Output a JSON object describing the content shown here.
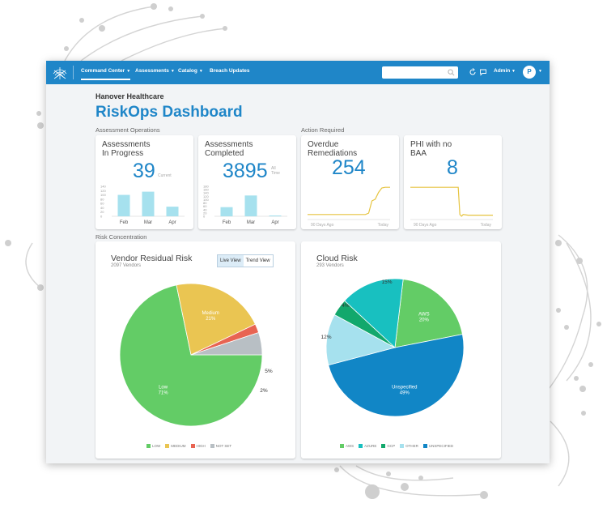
{
  "colors": {
    "brand": "#1f86c8",
    "bar": "#a6e1ee",
    "line": "#e6c440",
    "green": "#63cc66",
    "yellow": "#eac552",
    "red": "#e86452",
    "gray": "#b8bfc4",
    "teal": "#18c0c0",
    "dkgreen": "#12a86c",
    "lightblue": "#a6e1ee",
    "blue": "#1186c6"
  },
  "nav": {
    "items": [
      {
        "label": "Command Center",
        "active": true
      },
      {
        "label": "Assessments"
      },
      {
        "label": "Catalog"
      },
      {
        "label": "Breach Updates"
      }
    ],
    "search_placeholder": "",
    "admin_label": "Admin",
    "avatar_initial": "P",
    "icons": [
      "refresh-icon",
      "chat-icon"
    ]
  },
  "header": {
    "org": "Hanover Healthcare",
    "title": "RiskOps Dashboard"
  },
  "sections": {
    "assessment_operations": "Assessment Operations",
    "action_required": "Action Required",
    "risk_concentration": "Risk Concentration"
  },
  "cards": {
    "in_progress": {
      "title_line1": "Assessments",
      "title_line2": "In Progress",
      "value": "39",
      "value_note": "Current"
    },
    "completed": {
      "title_line1": "Assessments",
      "title_line2": "Completed",
      "value": "3895",
      "value_note": "All Time"
    },
    "overdue": {
      "title_line1": "Overdue",
      "title_line2": "Remediations",
      "value": "254",
      "x_start": "90 Days Ago",
      "x_end": "Today"
    },
    "phi": {
      "title_line1": "PHI with no",
      "title_line2": "BAA",
      "value": "8",
      "x_start": "90 Days Ago",
      "x_end": "Today"
    }
  },
  "vendor_risk": {
    "title": "Vendor Residual Risk",
    "subtitle": "2097 Vendors",
    "toggle": [
      "Live View",
      "Trend View"
    ],
    "toggle_selected": "Live View"
  },
  "cloud_risk": {
    "title": "Cloud Risk",
    "subtitle": "293 Vendors"
  },
  "chart_data": [
    {
      "type": "bar",
      "name": "in_progress",
      "categories": [
        "Feb",
        "Mar",
        "Apr"
      ],
      "values": [
        100,
        115,
        45
      ],
      "yticks": [
        "0",
        "20",
        "40",
        "60",
        "80",
        "100",
        "120",
        "140"
      ],
      "ylim": [
        0,
        140
      ]
    },
    {
      "type": "bar",
      "name": "completed",
      "categories": [
        "Feb",
        "Mar",
        "Apr"
      ],
      "values": [
        55,
        125,
        5
      ],
      "yticks": [
        "0",
        "20",
        "40",
        "60",
        "80",
        "100",
        "120",
        "140",
        "160",
        "180"
      ],
      "ylim": [
        0,
        180
      ]
    },
    {
      "type": "line",
      "name": "overdue",
      "x": [
        0,
        70,
        74,
        78,
        82,
        86,
        90,
        94,
        100
      ],
      "y": [
        10,
        10,
        14,
        50,
        55,
        75,
        88,
        90,
        90
      ],
      "ylim": [
        0,
        100
      ]
    },
    {
      "type": "line",
      "name": "phi",
      "x": [
        0,
        58,
        60,
        62,
        64,
        70,
        100
      ],
      "y": [
        90,
        90,
        10,
        5,
        10,
        8,
        8
      ],
      "ylim": [
        0,
        100
      ]
    },
    {
      "type": "pie",
      "name": "vendor_residual_risk",
      "slices": [
        {
          "label": "Low",
          "legend": "LOW",
          "value": 71,
          "color": "#63cc66",
          "inside": "71%"
        },
        {
          "label": "Medium",
          "legend": "MEDIUM",
          "value": 21,
          "color": "#eac552",
          "inside": "21%"
        },
        {
          "label": "",
          "legend": "HIGH",
          "value": 2,
          "color": "#e86452",
          "outside": "2%"
        },
        {
          "label": "",
          "legend": "NOT SET",
          "value": 5,
          "color": "#b8bfc4",
          "outside": "5%"
        }
      ]
    },
    {
      "type": "pie",
      "name": "cloud_risk",
      "slices": [
        {
          "label": "AWS",
          "legend": "AWS",
          "value": 20,
          "color": "#63cc66",
          "inside": "20%"
        },
        {
          "label": "Unspecified",
          "legend": "UNSPECIFIED",
          "value": 49,
          "color": "#1186c6",
          "inside": "49%"
        },
        {
          "label": "",
          "legend": "OTHER",
          "value": 12,
          "color": "#a6e1ee",
          "outside": "12%"
        },
        {
          "label": "",
          "legend": "GCP",
          "value": 4,
          "color": "#12a86c",
          "outside": "4%"
        },
        {
          "label": "",
          "legend": "AZURE",
          "value": 15,
          "color": "#18c0c0",
          "outside": "15%"
        }
      ]
    }
  ]
}
